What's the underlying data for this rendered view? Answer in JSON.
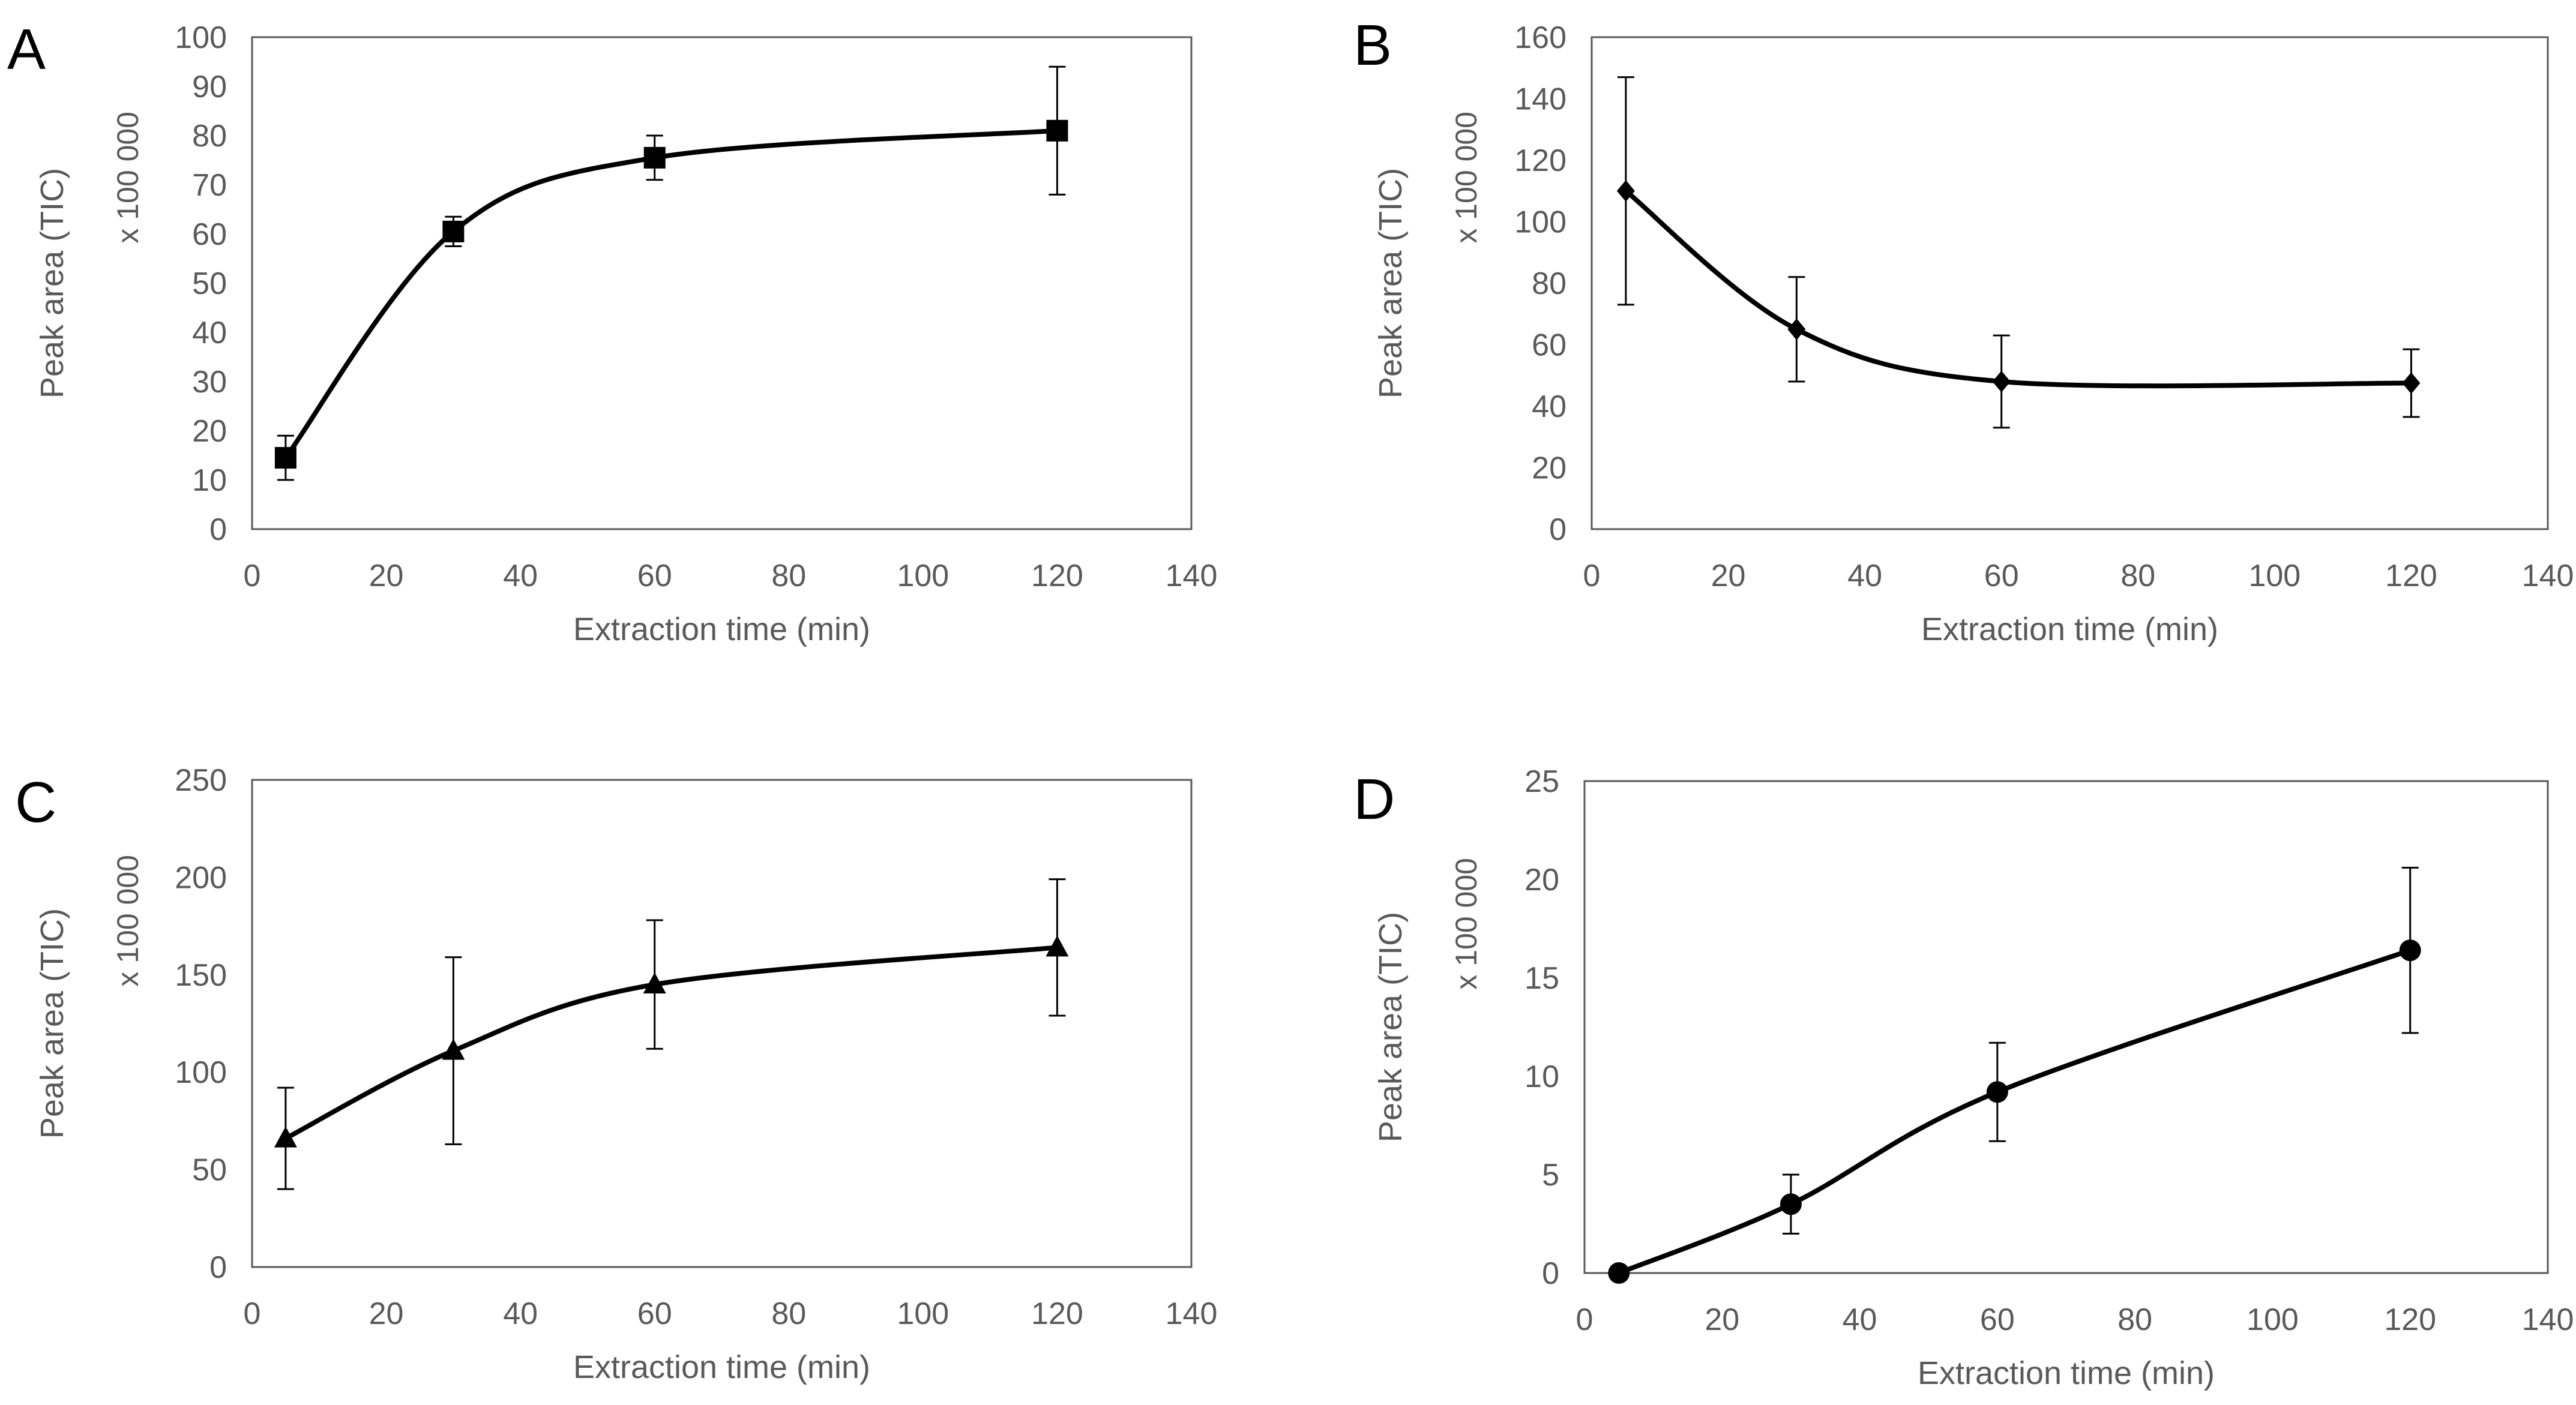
{
  "chart_data": [
    {
      "panel": "A",
      "type": "line",
      "xlabel": "Extraction time (min)",
      "ylabel": "Peak area (TIC)",
      "scale_note": "x 100 000",
      "xlim": [
        0,
        140
      ],
      "ylim": [
        0,
        100
      ],
      "xticks": [
        0,
        20,
        40,
        60,
        80,
        100,
        120,
        140
      ],
      "yticks": [
        0,
        10,
        20,
        30,
        40,
        50,
        60,
        70,
        80,
        90,
        100
      ],
      "marker": "square",
      "series": [
        {
          "name": "A",
          "x": [
            5,
            30,
            60,
            120
          ],
          "y": [
            14.5,
            60.5,
            75.5,
            81
          ],
          "err": [
            4.5,
            3,
            4.5,
            13
          ]
        }
      ]
    },
    {
      "panel": "B",
      "type": "line",
      "xlabel": "Extraction time (min)",
      "ylabel": "Peak area (TIC)",
      "scale_note": "x 100 000",
      "xlim": [
        0,
        140
      ],
      "ylim": [
        0,
        160
      ],
      "xticks": [
        0,
        20,
        40,
        60,
        80,
        100,
        120,
        140
      ],
      "yticks": [
        0,
        20,
        40,
        60,
        80,
        100,
        120,
        140,
        160
      ],
      "marker": "diamond",
      "series": [
        {
          "name": "B",
          "x": [
            5,
            30,
            60,
            120
          ],
          "y": [
            110,
            65,
            48,
            47.5
          ],
          "err": [
            37,
            17,
            15,
            11
          ]
        }
      ]
    },
    {
      "panel": "C",
      "type": "line",
      "xlabel": "Extraction time (min)",
      "ylabel": "Peak area (TIC)",
      "scale_note": "x 100 000",
      "xlim": [
        0,
        140
      ],
      "ylim": [
        0,
        250
      ],
      "xticks": [
        0,
        20,
        40,
        60,
        80,
        100,
        120,
        140
      ],
      "yticks": [
        0,
        50,
        100,
        150,
        200,
        250
      ],
      "marker": "triangle",
      "series": [
        {
          "name": "C",
          "x": [
            5,
            30,
            60,
            120
          ],
          "y": [
            66,
            111,
            145,
            164
          ],
          "err": [
            26,
            48,
            33,
            35
          ]
        }
      ]
    },
    {
      "panel": "D",
      "type": "line",
      "xlabel": "Extraction time (min)",
      "ylabel": "Peak area (TIC)",
      "scale_note": "x 100 000",
      "xlim": [
        0,
        140
      ],
      "ylim": [
        0,
        25
      ],
      "xticks": [
        0,
        20,
        40,
        60,
        80,
        100,
        120,
        140
      ],
      "yticks": [
        0,
        5,
        10,
        15,
        20,
        25
      ],
      "marker": "circle",
      "series": [
        {
          "name": "D",
          "x": [
            5,
            30,
            60,
            120
          ],
          "y": [
            0,
            3.5,
            9.2,
            16.4
          ],
          "err": [
            0,
            1.5,
            2.5,
            4.2
          ]
        }
      ]
    }
  ]
}
